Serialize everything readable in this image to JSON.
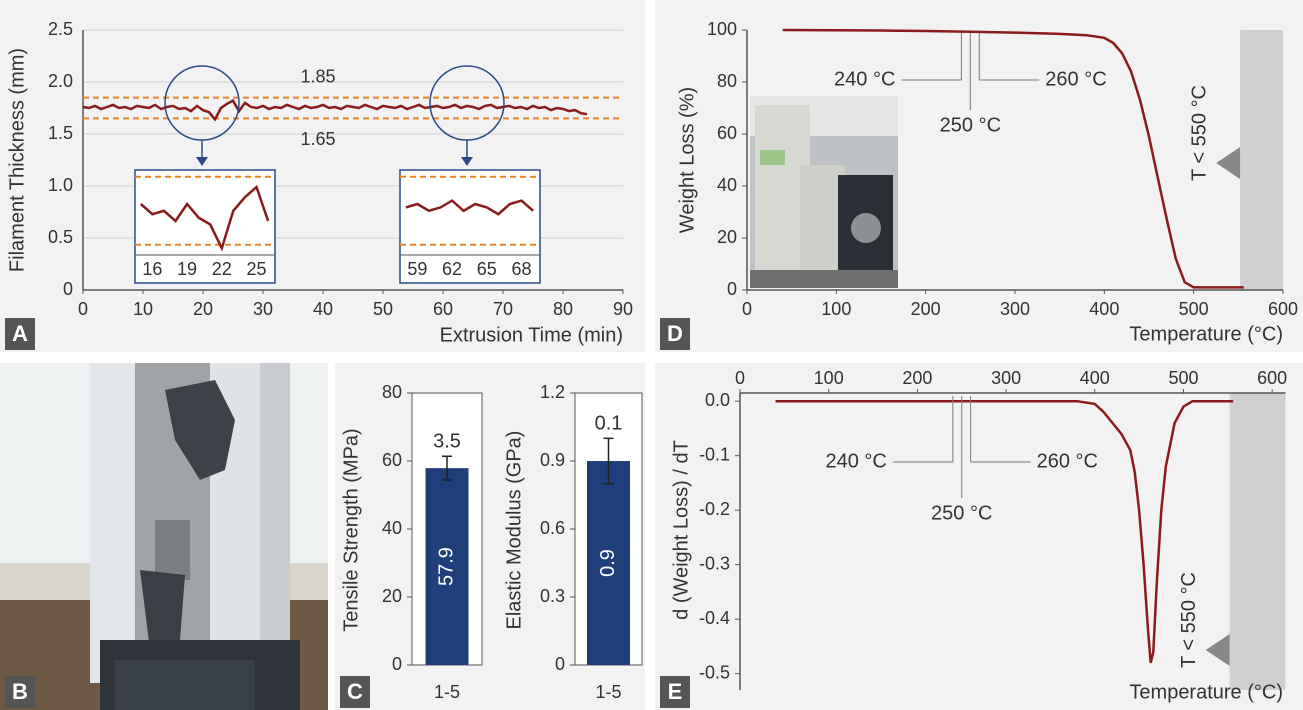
{
  "chart_data": [
    {
      "type": "line",
      "panel": "A",
      "xlabel": "Extrusion Time (min)",
      "ylabel": "Filament Thickness (mm)",
      "xlim": [
        0,
        90
      ],
      "xticks": [
        0,
        10,
        20,
        30,
        40,
        50,
        60,
        70,
        80,
        90
      ],
      "ylim": [
        0,
        2.5
      ],
      "yticks": [
        0,
        0.5,
        {
          "value": 1,
          "label": "1.0"
        },
        1.5,
        {
          "value": 2,
          "label": "2.0"
        },
        2.5
      ],
      "grid": true,
      "color": "#8b1a1a",
      "limits": [
        1.85,
        1.65
      ],
      "limit_color": "#e8852a",
      "x": [
        0,
        1,
        2,
        3,
        4,
        5,
        6,
        7,
        8,
        9,
        10,
        11,
        12,
        13,
        14,
        15,
        16,
        17,
        18,
        19,
        20,
        21,
        22,
        23,
        24,
        25,
        26,
        27,
        28,
        29,
        30,
        31,
        32,
        33,
        34,
        35,
        36,
        37,
        38,
        39,
        40,
        41,
        42,
        43,
        44,
        45,
        46,
        47,
        48,
        49,
        50,
        51,
        52,
        53,
        54,
        55,
        56,
        57,
        58,
        59,
        60,
        61,
        62,
        63,
        64,
        65,
        66,
        67,
        68,
        69,
        70,
        71,
        72,
        73,
        74,
        75,
        76,
        77,
        78,
        79,
        80,
        81,
        82,
        83,
        84
      ],
      "values": [
        1.76,
        1.75,
        1.77,
        1.74,
        1.76,
        1.78,
        1.75,
        1.76,
        1.74,
        1.77,
        1.76,
        1.75,
        1.78,
        1.74,
        1.76,
        1.77,
        1.74,
        1.75,
        1.72,
        1.77,
        1.73,
        1.71,
        1.64,
        1.75,
        1.79,
        1.82,
        1.72,
        1.8,
        1.76,
        1.75,
        1.77,
        1.74,
        1.76,
        1.75,
        1.78,
        1.76,
        1.74,
        1.77,
        1.75,
        1.76,
        1.78,
        1.75,
        1.76,
        1.74,
        1.77,
        1.76,
        1.75,
        1.78,
        1.76,
        1.74,
        1.77,
        1.76,
        1.75,
        1.77,
        1.74,
        1.76,
        1.78,
        1.75,
        1.76,
        1.77,
        1.75,
        1.76,
        1.78,
        1.75,
        1.77,
        1.76,
        1.74,
        1.77,
        1.78,
        1.75,
        1.76,
        1.77,
        1.75,
        1.76,
        1.74,
        1.77,
        1.75,
        1.76,
        1.73,
        1.75,
        1.74,
        1.72,
        1.73,
        1.7,
        1.69
      ],
      "insets": [
        {
          "xlim": [
            14.5,
            26.6
          ],
          "ylim": [
            1.62,
            1.87
          ],
          "xticks": [
            16,
            19,
            22,
            25
          ]
        },
        {
          "xlim": [
            57.5,
            69.6
          ],
          "ylim": [
            1.62,
            1.87
          ],
          "xticks": [
            59,
            62,
            65,
            68
          ]
        }
      ]
    },
    {
      "type": "line",
      "panel": "D",
      "xlabel": "Temperature (°C)",
      "ylabel": "Weight Loss (%)",
      "xlim": [
        0,
        600
      ],
      "xticks": [
        0,
        100,
        200,
        300,
        400,
        500,
        600
      ],
      "ylim": [
        0,
        100
      ],
      "yticks": [
        0,
        20,
        40,
        60,
        80,
        100
      ],
      "color": "#8b1a1a",
      "x": [
        40,
        100,
        150,
        200,
        250,
        300,
        350,
        380,
        400,
        410,
        420,
        430,
        440,
        450,
        460,
        470,
        480,
        490,
        500,
        510,
        530,
        556
      ],
      "values": [
        100,
        99.9,
        99.8,
        99.6,
        99.3,
        99,
        98.5,
        98,
        97,
        95,
        91,
        84,
        73,
        59,
        43,
        27,
        12,
        3,
        1,
        1,
        1,
        1
      ],
      "annotations": [
        {
          "x": 240,
          "label": "240 °C"
        },
        {
          "x": 250,
          "label": "250 °C"
        },
        {
          "x": 260,
          "label": "260 °C"
        }
      ],
      "shade": [
        552,
        600
      ],
      "shade_label": "T < 550 °C"
    },
    {
      "type": "line",
      "panel": "E",
      "xlabel": "Temperature (°C)",
      "ylabel": "d (Weight Loss) / dT",
      "xlim": [
        0,
        615
      ],
      "xticks": [
        0,
        100,
        200,
        300,
        400,
        500,
        600
      ],
      "ylim": [
        -0.53,
        0.015
      ],
      "yticks": [
        {
          "value": 0,
          "label": "0.0"
        },
        -0.1,
        -0.2,
        -0.3,
        -0.4,
        -0.5
      ],
      "color": "#8b1a1a",
      "x": [
        40,
        100,
        200,
        300,
        380,
        400,
        410,
        420,
        430,
        440,
        445,
        450,
        455,
        460,
        463,
        466,
        470,
        475,
        480,
        490,
        500,
        510,
        530,
        556
      ],
      "values": [
        0,
        0,
        0,
        0,
        0,
        -0.005,
        -0.02,
        -0.04,
        -0.06,
        -0.09,
        -0.13,
        -0.2,
        -0.3,
        -0.42,
        -0.48,
        -0.46,
        -0.33,
        -0.2,
        -0.12,
        -0.04,
        -0.01,
        0,
        0,
        0
      ],
      "annotations": [
        {
          "x": 240,
          "label": "240 °C"
        },
        {
          "x": 250,
          "label": "250 °C"
        },
        {
          "x": 260,
          "label": "260 °C"
        }
      ],
      "shade": [
        552,
        615
      ],
      "shade_label": "T < 550 °C"
    },
    {
      "type": "bar",
      "panel": "C",
      "ylabel": "Tensile Strength (MPa)",
      "categories": [
        "1-5"
      ],
      "values": [
        57.9
      ],
      "errors": [
        3.5
      ],
      "ylim": [
        0,
        80
      ],
      "yticks": [
        0,
        20,
        40,
        60,
        80
      ],
      "color": "#1f3f7a"
    },
    {
      "type": "bar",
      "ylabel": "Elastic Modulus (GPa)",
      "categories": [
        "1-5"
      ],
      "values": [
        0.9
      ],
      "errors": [
        0.1
      ],
      "ylim": [
        0,
        1.2
      ],
      "yticks": [
        0,
        0.3,
        0.6,
        0.9,
        1.2
      ],
      "color": "#1f3f7a"
    }
  ],
  "photo": {
    "panel": "B"
  }
}
